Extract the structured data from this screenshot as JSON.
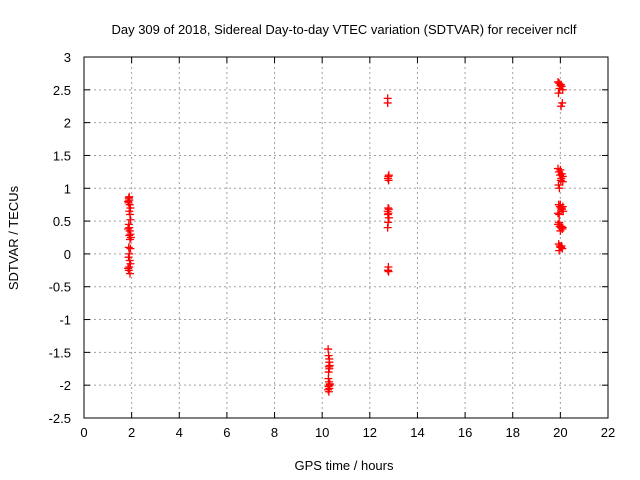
{
  "chart_data": {
    "type": "scatter",
    "title": "Day 309 of 2018, Sidereal Day-to-day VTEC variation (SDTVAR) for receiver nclf",
    "xlabel": "GPS time / hours",
    "ylabel": "SDTVAR / TECUs",
    "xlim": [
      0,
      22
    ],
    "ylim": [
      -2.5,
      3
    ],
    "x_ticks": [
      0,
      2,
      4,
      6,
      8,
      10,
      12,
      14,
      16,
      18,
      20,
      22
    ],
    "y_ticks": [
      -2.5,
      -2,
      -1.5,
      -1,
      -0.5,
      0,
      0.5,
      1,
      1.5,
      2,
      2.5,
      3
    ],
    "x_tick_labels": [
      "0",
      "2",
      "4",
      "6",
      "8",
      "10",
      "12",
      "14",
      "16",
      "18",
      "20",
      "22"
    ],
    "y_tick_labels": [
      "-2.5",
      "-2",
      "-1.5",
      "-1",
      "-0.5",
      "0",
      "0.5",
      "1",
      "1.5",
      "2",
      "2.5",
      "3"
    ],
    "grid": true,
    "marker": "+",
    "marker_color": "#ff0000",
    "series": [
      {
        "name": "SDTVAR",
        "x": [
          1.85,
          1.88,
          1.9,
          1.92,
          1.95,
          1.87,
          1.9,
          1.93,
          1.95,
          1.88,
          1.9,
          1.92,
          1.95,
          1.97,
          1.85,
          1.9,
          1.93,
          1.88,
          1.95,
          1.9,
          1.87,
          1.92,
          1.95,
          1.9,
          1.88,
          1.93,
          1.85,
          1.9,
          10.25,
          10.27,
          10.3,
          10.32,
          10.28,
          10.3,
          10.26,
          10.29,
          10.31,
          10.27,
          10.3,
          10.25,
          10.28,
          10.32,
          10.3,
          10.27,
          12.75,
          12.75,
          12.78,
          12.8,
          12.76,
          12.79,
          12.77,
          12.8,
          12.75,
          12.78,
          12.76,
          12.8,
          12.77,
          12.75,
          12.78,
          12.76,
          12.79,
          19.9,
          19.95,
          20.0,
          20.05,
          20.1,
          19.92,
          19.97,
          20.02,
          20.08,
          19.9,
          19.94,
          19.99,
          20.04,
          20.1,
          19.92,
          19.96,
          20.0,
          20.06,
          20.1,
          20.03,
          19.93,
          19.98,
          20.02,
          20.07,
          20.12,
          19.9,
          19.95,
          20.0,
          20.05,
          20.1,
          19.92,
          19.97,
          20.02,
          20.08,
          19.9,
          19.95,
          20.0,
          20.05,
          20.1,
          19.93,
          19.98,
          20.03,
          20.08,
          19.95,
          20.0,
          20.05,
          20.02
        ],
        "y": [
          0.8,
          0.85,
          0.87,
          0.75,
          0.7,
          0.78,
          0.65,
          0.6,
          0.52,
          0.45,
          0.4,
          0.35,
          0.3,
          0.25,
          0.38,
          0.28,
          0.22,
          0.1,
          0.08,
          0.0,
          -0.05,
          -0.1,
          -0.15,
          -0.2,
          -0.25,
          -0.3,
          -0.22,
          0.82,
          -1.45,
          -1.55,
          -1.65,
          -1.7,
          -1.72,
          -1.75,
          -1.9,
          -1.95,
          -2.0,
          -2.02,
          -2.05,
          -2.07,
          -2.1,
          -1.98,
          -1.6,
          -1.8,
          2.37,
          2.3,
          1.18,
          1.2,
          1.15,
          1.12,
          0.7,
          0.68,
          0.65,
          0.62,
          0.6,
          0.55,
          0.48,
          0.4,
          -0.2,
          -0.25,
          -0.27,
          2.62,
          2.6,
          2.57,
          2.55,
          2.5,
          2.45,
          2.52,
          2.58,
          2.3,
          1.3,
          1.25,
          1.2,
          1.15,
          1.1,
          1.05,
          1.0,
          1.28,
          1.22,
          1.18,
          2.25,
          0.75,
          0.72,
          0.7,
          0.68,
          0.65,
          0.62,
          0.6,
          0.75,
          0.7,
          0.72,
          0.45,
          0.42,
          0.4,
          0.38,
          0.45,
          0.48,
          0.35,
          0.42,
          0.4,
          0.15,
          0.12,
          0.1,
          0.08,
          0.05,
          0.1,
          0.12,
          1.12
        ]
      }
    ]
  }
}
